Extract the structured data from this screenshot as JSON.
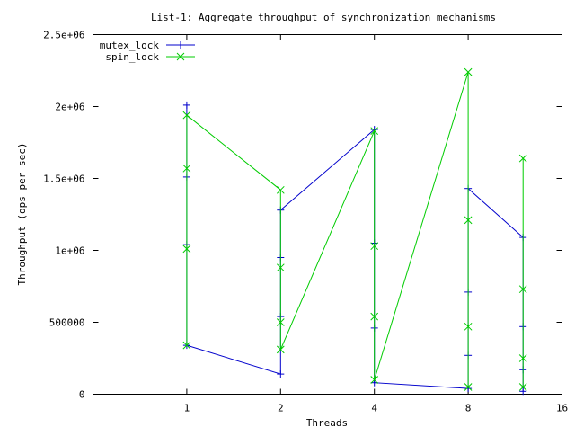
{
  "chart_data": {
    "type": "line",
    "title": "List-1: Aggregate throughput of synchronization mechanisms",
    "xlabel": "Threads",
    "ylabel": "Throughput (ops per sec)",
    "x_axis_scale": "log2",
    "xlim": [
      0.5,
      16
    ],
    "ylim": [
      0,
      2500000
    ],
    "x_tick_labels": [
      "1",
      "2",
      "4",
      "8",
      "16"
    ],
    "x_tick_values": [
      1,
      2,
      4,
      8,
      16
    ],
    "y_tick_labels": [
      "0",
      "500000",
      "1e+06",
      "1.5e+06",
      "2e+06",
      "2.5e+06"
    ],
    "y_tick_values": [
      0,
      500000,
      1000000,
      1500000,
      2000000,
      2500000
    ],
    "grid": false,
    "legend_position": "top-left",
    "series": [
      {
        "name": "mutex_lock",
        "color": "#0000cc",
        "marker": "plus",
        "x": [
          1,
          1,
          1,
          1,
          2,
          2,
          2,
          2,
          4,
          4,
          4,
          4,
          8,
          8,
          8,
          8,
          12,
          12,
          12,
          12
        ],
        "y": [
          2010000,
          1510000,
          1040000,
          340000,
          140000,
          540000,
          950000,
          1280000,
          1840000,
          1050000,
          460000,
          80000,
          40000,
          270000,
          710000,
          1430000,
          1090000,
          470000,
          170000,
          20000
        ]
      },
      {
        "name": "spin_lock",
        "color": "#00cc00",
        "marker": "cross",
        "x": [
          1,
          1,
          1,
          1,
          2,
          2,
          2,
          2,
          4,
          4,
          4,
          4,
          8,
          8,
          8,
          8,
          12,
          12,
          12,
          12
        ],
        "y": [
          340000,
          1010000,
          1570000,
          1940000,
          1420000,
          880000,
          500000,
          310000,
          1830000,
          1030000,
          540000,
          100000,
          2240000,
          1210000,
          470000,
          50000,
          50000,
          250000,
          730000,
          1640000
        ]
      }
    ]
  }
}
